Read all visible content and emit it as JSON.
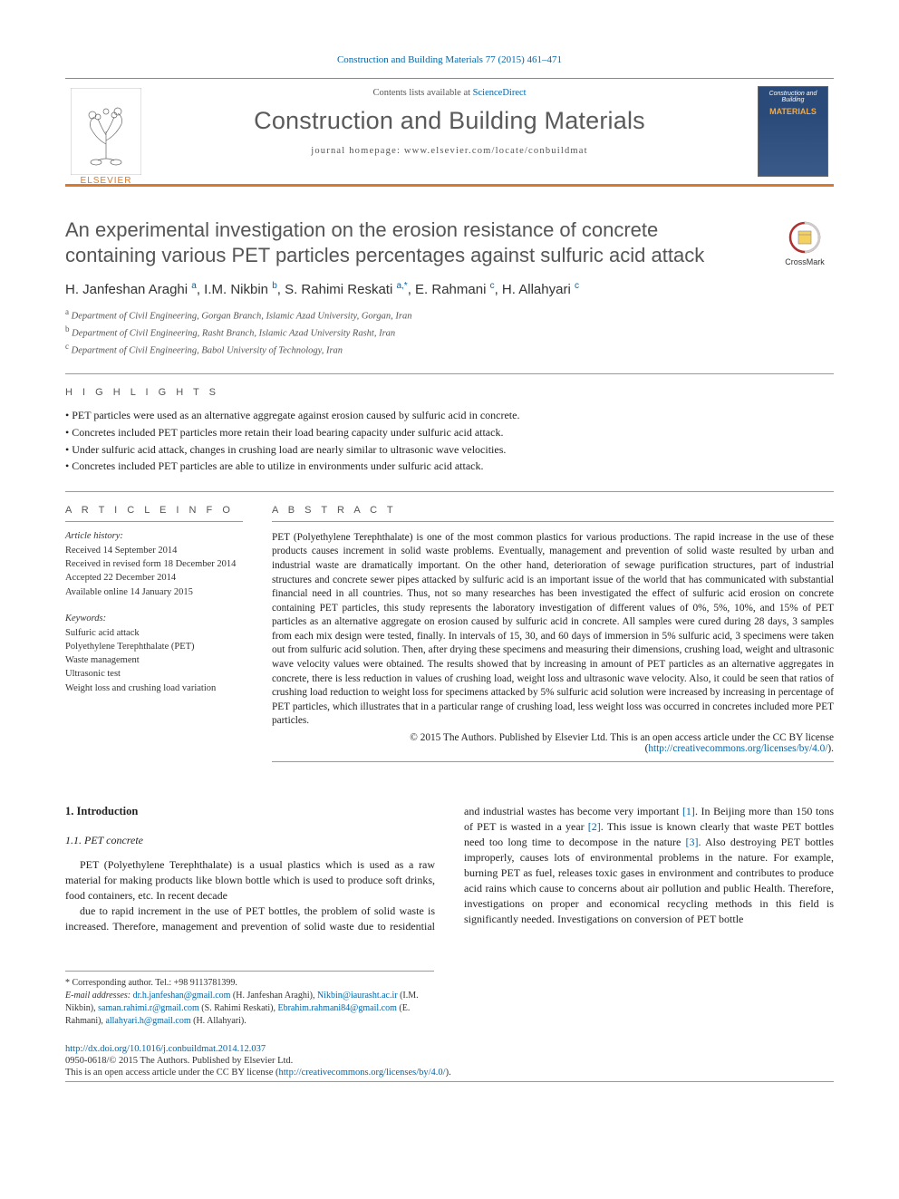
{
  "citation": {
    "journal_link_text": "Construction and Building Materials 77 (2015) 461–471"
  },
  "header": {
    "contents_prefix": "Contents lists available at ",
    "contents_link": "ScienceDirect",
    "journal_name": "Construction and Building Materials",
    "homepage_label": "journal homepage: www.elsevier.com/locate/conbuildmat",
    "publisher": "ELSEVIER",
    "cover_top": "Construction and Building",
    "cover_mat": "MATERIALS"
  },
  "crossmark_label": "CrossMark",
  "title": "An experimental investigation on the erosion resistance of concrete containing various PET particles percentages against sulfuric acid attack",
  "authors_html": "H. Janfeshan Araghi <sup>a</sup>, I.M. Nikbin <sup>b</sup>, S. Rahimi Reskati <sup>a,*</sup>, E. Rahmani <sup>c</sup>, H. Allahyari <sup>c</sup>",
  "affils": [
    "a Department of Civil Engineering, Gorgan Branch, Islamic Azad University, Gorgan, Iran",
    "b Department of Civil Engineering, Rasht Branch, Islamic Azad University Rasht, Iran",
    "c Department of Civil Engineering, Babol University of Technology, Iran"
  ],
  "hl_head": "H I G H L I G H T S",
  "highlights": [
    "PET particles were used as an alternative aggregate against erosion caused by sulfuric acid in concrete.",
    "Concretes included PET particles more retain their load bearing capacity under sulfuric acid attack.",
    "Under sulfuric acid attack, changes in crushing load are nearly similar to ultrasonic wave velocities.",
    "Concretes included PET particles are able to utilize in environments under sulfuric acid attack."
  ],
  "info_head_left": "A R T I C L E  I N F O",
  "info_head_right": "A B S T R A C T",
  "history_label": "Article history:",
  "history": [
    "Received 14 September 2014",
    "Received in revised form 18 December 2014",
    "Accepted 22 December 2014",
    "Available online 14 January 2015"
  ],
  "kw_head": "Keywords:",
  "keywords": [
    "Sulfuric acid attack",
    "Polyethylene Terephthalate (PET)",
    "Waste management",
    "Ultrasonic test",
    "Weight loss and crushing load variation"
  ],
  "abstract": "PET (Polyethylene Terephthalate) is one of the most common plastics for various productions. The rapid increase in the use of these products causes increment in solid waste problems. Eventually, management and prevention of solid waste resulted by urban and industrial waste are dramatically important. On the other hand, deterioration of sewage purification structures, part of industrial structures and concrete sewer pipes attacked by sulfuric acid is an important issue of the world that has communicated with substantial financial need in all countries. Thus, not so many researches has been investigated the effect of sulfuric acid erosion on concrete containing PET particles, this study represents the laboratory investigation of different values of 0%, 5%, 10%, and 15% of PET particles as an alternative aggregate on erosion caused by sulfuric acid in concrete. All samples were cured during 28 days, 3 samples from each mix design were tested, finally. In intervals of 15, 30, and 60 days of immersion in 5% sulfuric acid, 3 specimens were taken out from sulfuric acid solution. Then, after drying these specimens and measuring their dimensions, crushing load, weight and ultrasonic wave velocity values were obtained. The results showed that by increasing in amount of PET particles as an alternative aggregates in concrete, there is less reduction in values of crushing load, weight loss and ultrasonic wave velocity. Also, it could be seen that ratios of crushing load reduction to weight loss for specimens attacked by 5% sulfuric acid solution were increased by increasing in percentage of PET particles, which illustrates that in a particular range of crushing load, less weight loss was occurred in concretes included more PET particles.",
  "copyright_prefix": "© 2015 The Authors. Published by Elsevier Ltd. This is an open access article under the CC BY license (",
  "copyright_link": "http://creativecommons.org/licenses/by/4.0/",
  "copyright_suffix": ").",
  "sec1": "1. Introduction",
  "subsec11": "1.1. PET concrete",
  "body_col1": "PET (Polyethylene Terephthalate) is a usual plastics which is used as a raw material for making products like blown bottle which is used to produce soft drinks, food containers, etc. In recent decade",
  "body_col2": "due to rapid increment in the use of PET bottles, the problem of solid waste is increased. Therefore, management and prevention of solid waste due to residential and industrial wastes has become very important [1]. In Beijing more than 150 tons of PET is wasted in a year [2]. This issue is known clearly that waste PET bottles need too long time to decompose in the nature [3]. Also destroying PET bottles improperly, causes lots of environmental problems in the nature. For example, burning PET as fuel, releases toxic gases in environment and contributes to produce acid rains which cause to concerns about air pollution and public Health. Therefore, investigations on proper and economical recycling methods in this field is significantly needed. Investigations on conversion of PET bottle",
  "footnotes": {
    "corr": "* Corresponding author. Tel.: +98 9113781399.",
    "emails_label": "E-mail addresses: ",
    "emails": "dr.h.janfeshan@gmail.com (H. Janfeshan Araghi), Nikbin@iaurasht.ac.ir (I.M. Nikbin), saman.rahimi.r@gmail.com (S. Rahimi Reskati), Ebrahim.rahmani84@gmail.com (E. Rahmani), allahyari.h@gmail.com (H. Allahyari)."
  },
  "doi_link": "http://dx.doi.org/10.1016/j.conbuildmat.2014.12.037",
  "issn_line": "0950-0618/© 2015 The Authors. Published by Elsevier Ltd.",
  "license_prefix": "This is an open access article under the CC BY license (",
  "license_link": "http://creativecommons.org/licenses/by/4.0/",
  "license_suffix": ").",
  "colors": {
    "accent_orange": "#d9792e",
    "link_blue": "#0066aa",
    "grey_text": "#555555"
  }
}
